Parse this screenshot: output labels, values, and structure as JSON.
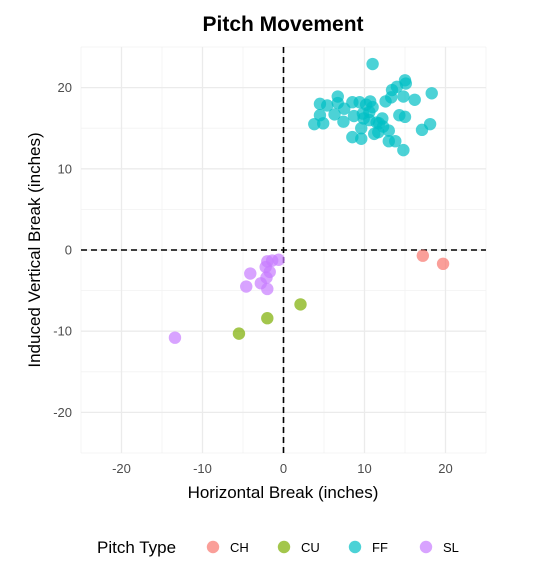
{
  "chart_data": {
    "type": "scatter",
    "title": "Pitch Movement",
    "xlabel": "Horizontal Break (inches)",
    "ylabel": "Induced Vertical Break (inches)",
    "xlim": [
      -25,
      25
    ],
    "ylim": [
      -25,
      25
    ],
    "x_ticks": [
      -20,
      -10,
      0,
      10,
      20
    ],
    "y_ticks": [
      -20,
      -10,
      0,
      10,
      20
    ],
    "x_tick_labels": [
      "-20",
      "-10",
      "0",
      "10",
      "20"
    ],
    "y_tick_labels": [
      "-20",
      "-10",
      "0",
      "10",
      "20"
    ],
    "grid": true,
    "reference_lines": {
      "x": 0,
      "y": 0,
      "style": "dashed"
    },
    "legend": {
      "title": "Pitch Type",
      "position": "bottom"
    },
    "series": [
      {
        "name": "CH",
        "color": "#F8766D",
        "points": [
          [
            17.2,
            -0.7
          ],
          [
            19.7,
            -1.7
          ]
        ]
      },
      {
        "name": "CU",
        "color": "#7CAE00",
        "points": [
          [
            2.1,
            -6.7
          ],
          [
            -2.0,
            -8.4
          ],
          [
            -5.5,
            -10.3
          ]
        ]
      },
      {
        "name": "FF",
        "color": "#00BFC4",
        "points": [
          [
            11.0,
            22.9
          ],
          [
            15.0,
            20.9
          ],
          [
            15.1,
            20.5
          ],
          [
            14.0,
            20.1
          ],
          [
            13.4,
            19.7
          ],
          [
            18.3,
            19.3
          ],
          [
            13.3,
            18.8
          ],
          [
            14.8,
            18.9
          ],
          [
            16.2,
            18.5
          ],
          [
            12.6,
            18.3
          ],
          [
            6.7,
            18.9
          ],
          [
            6.7,
            18.1
          ],
          [
            4.5,
            18.0
          ],
          [
            5.4,
            17.8
          ],
          [
            8.5,
            18.2
          ],
          [
            9.4,
            18.2
          ],
          [
            10.7,
            18.3
          ],
          [
            10.2,
            17.9
          ],
          [
            11.0,
            17.6
          ],
          [
            7.5,
            17.4
          ],
          [
            10.6,
            17.0
          ],
          [
            9.8,
            16.8
          ],
          [
            8.7,
            16.5
          ],
          [
            6.3,
            16.7
          ],
          [
            4.5,
            16.6
          ],
          [
            9.9,
            16.2
          ],
          [
            10.6,
            16.0
          ],
          [
            11.5,
            15.7
          ],
          [
            12.2,
            16.2
          ],
          [
            11.8,
            15.6
          ],
          [
            15.0,
            16.4
          ],
          [
            14.3,
            16.6
          ],
          [
            7.4,
            15.8
          ],
          [
            4.9,
            15.6
          ],
          [
            3.8,
            15.5
          ],
          [
            9.6,
            15.0
          ],
          [
            12.3,
            15.2
          ],
          [
            13.0,
            14.7
          ],
          [
            11.7,
            14.5
          ],
          [
            11.2,
            14.3
          ],
          [
            17.1,
            14.8
          ],
          [
            18.1,
            15.5
          ],
          [
            8.5,
            13.9
          ],
          [
            9.6,
            13.7
          ],
          [
            13.0,
            13.4
          ],
          [
            13.8,
            13.4
          ],
          [
            14.8,
            12.3
          ]
        ]
      },
      {
        "name": "SL",
        "color": "#C77CFF",
        "points": [
          [
            -1.4,
            -1.3
          ],
          [
            -0.6,
            -1.2
          ],
          [
            -2.0,
            -1.4
          ],
          [
            -2.2,
            -2.1
          ],
          [
            -1.7,
            -2.7
          ],
          [
            -4.1,
            -2.9
          ],
          [
            -2.1,
            -3.4
          ],
          [
            -2.8,
            -4.1
          ],
          [
            -4.6,
            -4.5
          ],
          [
            -2.0,
            -4.8
          ],
          [
            -13.4,
            -10.8
          ]
        ]
      }
    ]
  }
}
